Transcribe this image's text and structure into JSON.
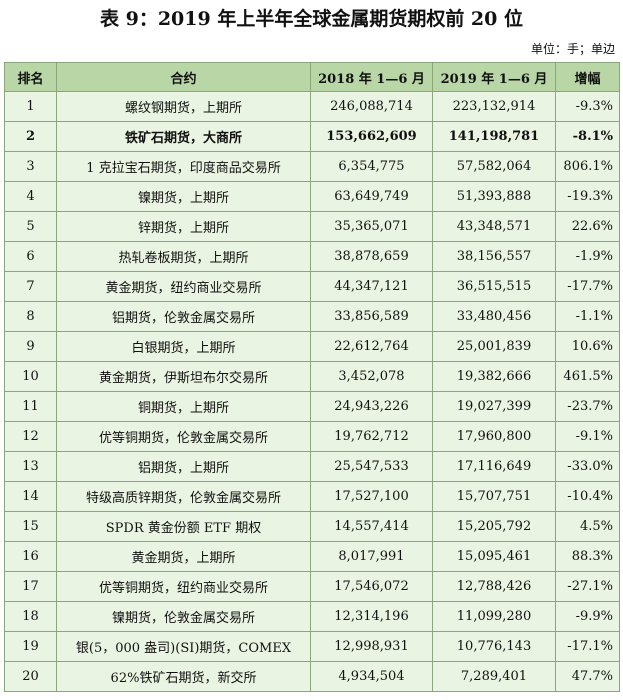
{
  "title": "表 9：2019 年上半年全球金属期货期权前 20 位",
  "unit_note": "单位：手；单边",
  "table": {
    "header": [
      "排名",
      "合约",
      "2018 年 1—6 月",
      "2019 年 1—6 月",
      "增幅"
    ],
    "rows": [
      [
        "1",
        "螺纹钢期货，上期所",
        "246,088,714",
        "223,132,914",
        "-9.3%"
      ],
      [
        "2",
        "铁矿石期货，大商所",
        "153,662,609",
        "141,198,781",
        "-8.1%"
      ],
      [
        "3",
        "1 克拉宝石期货，印度商品交易所",
        "6,354,775",
        "57,582,064",
        "806.1%"
      ],
      [
        "4",
        "镍期货，上期所",
        "63,649,749",
        "51,393,888",
        "-19.3%"
      ],
      [
        "5",
        "锌期货，上期所",
        "35,365,071",
        "43,348,571",
        "22.6%"
      ],
      [
        "6",
        "热轧卷板期货，上期所",
        "38,878,659",
        "38,156,557",
        "-1.9%"
      ],
      [
        "7",
        "黄金期货，纽约商业交易所",
        "44,347,121",
        "36,515,515",
        "-17.7%"
      ],
      [
        "8",
        "铝期货，伦敦金属交易所",
        "33,856,589",
        "33,480,456",
        "-1.1%"
      ],
      [
        "9",
        "白银期货，上期所",
        "22,612,764",
        "25,001,839",
        "10.6%"
      ],
      [
        "10",
        "黄金期货，伊斯坦布尔交易所",
        "3,452,078",
        "19,382,666",
        "461.5%"
      ],
      [
        "11",
        "铜期货，上期所",
        "24,943,226",
        "19,027,399",
        "-23.7%"
      ],
      [
        "12",
        "优等铜期货，伦敦金属交易所",
        "19,762,712",
        "17,960,800",
        "-9.1%"
      ],
      [
        "13",
        "铝期货，上期所",
        "25,547,533",
        "17,116,649",
        "-33.0%"
      ],
      [
        "14",
        "特级高质锌期货，伦敦金属交易所",
        "17,527,100",
        "15,707,751",
        "-10.4%"
      ],
      [
        "15",
        "SPDR 黄金份额 ETF 期权",
        "14,557,414",
        "15,205,792",
        "4.5%"
      ],
      [
        "16",
        "黄金期货，上期所",
        "8,017,991",
        "15,095,461",
        "88.3%"
      ],
      [
        "17",
        "优等铜期货，纽约商业交易所",
        "17,546,072",
        "12,788,426",
        "-27.1%"
      ],
      [
        "18",
        "镍期货，伦敦金属交易所",
        "12,314,196",
        "11,099,280",
        "-9.9%"
      ],
      [
        "19",
        "银(5，000 盎司)(SI)期货，COMEX",
        "12,998,931",
        "10,776,143",
        "-17.1%"
      ],
      [
        "20",
        "62%铁矿石期货，新交所",
        "4,934,504",
        "7,289,401",
        "47.7%"
      ]
    ]
  }
}
